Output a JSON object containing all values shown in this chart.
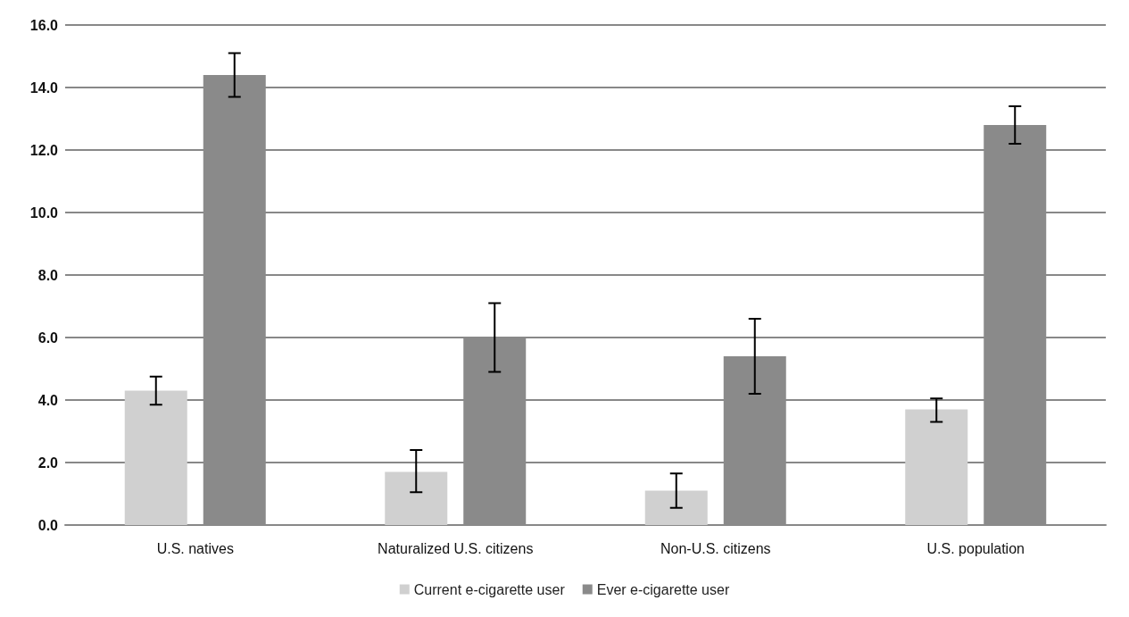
{
  "chart_data": {
    "type": "bar",
    "categories": [
      "U.S. natives",
      "Naturalized U.S. citizens",
      "Non-U.S. citizens",
      "U.S. population"
    ],
    "series": [
      {
        "name": "Current e-cigarette user",
        "color": "#d0d0d0",
        "values": [
          4.3,
          1.7,
          1.1,
          3.7
        ],
        "errors": [
          [
            3.85,
            4.75
          ],
          [
            1.05,
            2.4
          ],
          [
            0.55,
            1.65
          ],
          [
            3.3,
            4.05
          ]
        ]
      },
      {
        "name": "Ever e-cigarette user",
        "color": "#8a8a8a",
        "values": [
          14.4,
          6.0,
          5.4,
          12.8
        ],
        "errors": [
          [
            13.7,
            15.1
          ],
          [
            4.9,
            7.1
          ],
          [
            4.2,
            6.6
          ],
          [
            12.2,
            13.4
          ]
        ]
      }
    ],
    "ylim": [
      0,
      16
    ],
    "yticks": [
      {
        "value": 0,
        "label": "0.0"
      },
      {
        "value": 2,
        "label": "2.0"
      },
      {
        "value": 4,
        "label": "4.0"
      },
      {
        "value": 6,
        "label": "6.0"
      },
      {
        "value": 8,
        "label": "8.0"
      },
      {
        "value": 10,
        "label": "10.0"
      },
      {
        "value": 12,
        "label": "12.0"
      },
      {
        "value": 14,
        "label": "14.0"
      },
      {
        "value": 16,
        "label": "16.0"
      }
    ],
    "grid": "y",
    "legend": "bottom"
  }
}
